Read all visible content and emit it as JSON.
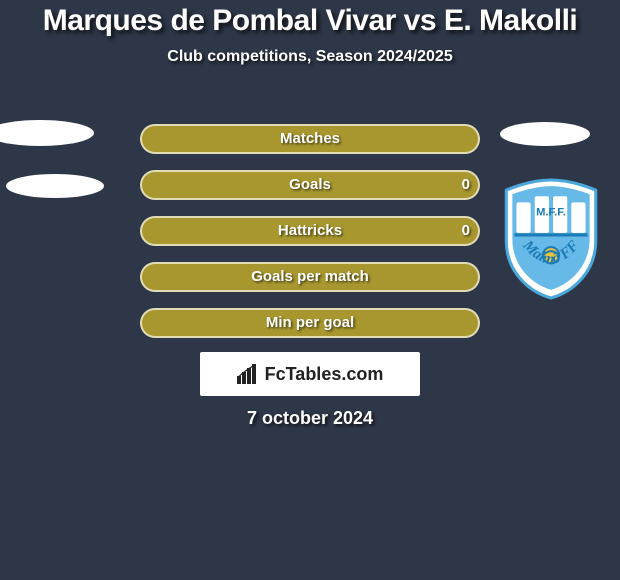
{
  "page": {
    "background_color": "#2e3748",
    "text_color": "#ffffff"
  },
  "title": "Marques de Pombal Vivar vs E. Makolli",
  "subtitle": "Club competitions, Season 2024/2025",
  "bars": {
    "fill_color": "#a8972f",
    "border_color": "#ffffff",
    "rows": [
      {
        "label": "Matches",
        "left": "",
        "right": "",
        "show_values": false
      },
      {
        "label": "Goals",
        "left": "",
        "right": "0",
        "show_left": false,
        "show_right": true
      },
      {
        "label": "Hattricks",
        "left": "",
        "right": "0",
        "show_left": false,
        "show_right": true
      },
      {
        "label": "Goals per match",
        "left": "",
        "right": "",
        "show_values": false
      },
      {
        "label": "Min per goal",
        "left": "",
        "right": "",
        "show_values": false
      }
    ]
  },
  "watermark": {
    "text": "FcTables.com",
    "icon": "bar-chart-icon"
  },
  "date": "7 october 2024",
  "club_badge": {
    "text": "Malmö FF",
    "primary_color": "#67b9e8",
    "secondary_color": "#ffffff"
  }
}
